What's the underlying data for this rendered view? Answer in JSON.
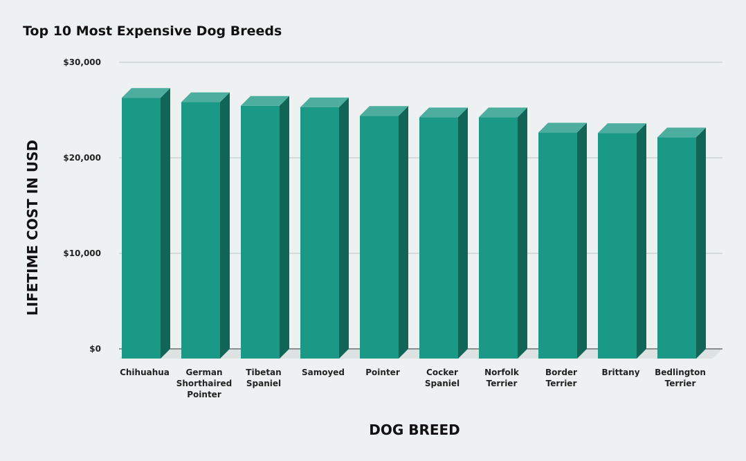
{
  "chart_data": {
    "type": "bar",
    "title": "Top 10 Most Expensive Dog Breeds",
    "xlabel": "DOG BREED",
    "ylabel": "LIFETIME COST IN USD",
    "categories": [
      "Chihuahua",
      "German Shorthaired Pointer",
      "Tibetan Spaniel",
      "Samoyed",
      "Pointer",
      "Cocker Spaniel",
      "Norfolk Terrier",
      "Border Terrier",
      "Brittany",
      "Bedlington Terrier"
    ],
    "category_lines": [
      [
        "Chihuahua"
      ],
      [
        "German",
        "Shorthaired",
        "Pointer"
      ],
      [
        "Tibetan",
        "Spaniel"
      ],
      [
        "Samoyed"
      ],
      [
        "Pointer"
      ],
      [
        "Cocker",
        "Spaniel"
      ],
      [
        "Norfolk",
        "Terrier"
      ],
      [
        "Border",
        "Terrier"
      ],
      [
        "Brittany"
      ],
      [
        "Bedlington",
        "Terrier"
      ]
    ],
    "values": [
      26290,
      25830,
      25450,
      25300,
      24400,
      24250,
      24250,
      22650,
      22600,
      22150
    ],
    "ylim": [
      0,
      30000
    ],
    "yticks": [
      0,
      10000,
      20000,
      30000
    ],
    "ytick_labels": [
      "$0",
      "$10,000",
      "$20,000",
      "$30,000"
    ],
    "grid": true,
    "colors": {
      "bar_front": "#1b9987",
      "bar_side": "#116556",
      "bar_top": "#4dae9f",
      "floor": "#dde2e2",
      "grid": "#bcc2c2",
      "baseline": "#333333"
    }
  }
}
